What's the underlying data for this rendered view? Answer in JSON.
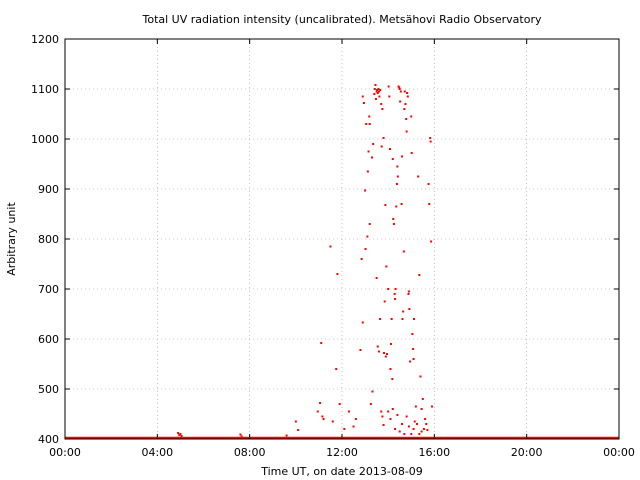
{
  "chart_data": {
    "type": "scatter",
    "title": "Total UV radiation intensity (uncalibrated). Metsähovi Radio Observatory",
    "xlabel": "Time UT, on date 2013-08-09",
    "ylabel": "Arbitrary unit",
    "xlim": [
      0,
      24
    ],
    "ylim": [
      400,
      1200
    ],
    "x_ticks": [
      {
        "value": 0,
        "label": "00:00"
      },
      {
        "value": 4,
        "label": "04:00"
      },
      {
        "value": 8,
        "label": "08:00"
      },
      {
        "value": 12,
        "label": "12:00"
      },
      {
        "value": 16,
        "label": "16:00"
      },
      {
        "value": 20,
        "label": "20:00"
      },
      {
        "value": 24,
        "label": "00:00"
      }
    ],
    "y_ticks": [
      400,
      500,
      600,
      700,
      800,
      900,
      1000,
      1100,
      1200
    ],
    "grid": true,
    "marker_color": "#ff0000",
    "series": [
      {
        "points": [
          [
            4.9,
            412
          ],
          [
            4.95,
            408
          ],
          [
            5.0,
            410
          ],
          [
            5.05,
            406
          ],
          [
            7.6,
            409
          ],
          [
            7.65,
            405
          ],
          [
            9.6,
            407
          ],
          [
            10.0,
            435
          ],
          [
            10.1,
            418
          ],
          [
            10.95,
            455
          ],
          [
            11.05,
            472
          ],
          [
            11.1,
            592
          ],
          [
            11.15,
            445
          ],
          [
            11.2,
            440
          ],
          [
            11.5,
            785
          ],
          [
            11.6,
            435
          ],
          [
            11.75,
            540
          ],
          [
            11.8,
            730
          ],
          [
            11.9,
            470
          ],
          [
            12.1,
            420
          ],
          [
            12.3,
            455
          ],
          [
            12.5,
            425
          ],
          [
            12.6,
            440
          ],
          [
            12.8,
            578
          ],
          [
            12.85,
            760
          ],
          [
            12.9,
            633
          ],
          [
            12.9,
            1085
          ],
          [
            12.95,
            1072
          ],
          [
            13.0,
            897
          ],
          [
            13.02,
            780
          ],
          [
            13.05,
            1030
          ],
          [
            13.1,
            805
          ],
          [
            13.12,
            935
          ],
          [
            13.15,
            975
          ],
          [
            13.18,
            1045
          ],
          [
            13.2,
            1030
          ],
          [
            13.2,
            830
          ],
          [
            13.25,
            470
          ],
          [
            13.3,
            963
          ],
          [
            13.32,
            495
          ],
          [
            13.35,
            990
          ],
          [
            13.4,
            1090
          ],
          [
            13.42,
            1100
          ],
          [
            13.45,
            1108
          ],
          [
            13.47,
            1080
          ],
          [
            13.5,
            1095
          ],
          [
            13.52,
            1098
          ],
          [
            13.55,
            1092
          ],
          [
            13.58,
            1100
          ],
          [
            13.6,
            1095
          ],
          [
            13.62,
            1085
          ],
          [
            13.65,
            1098
          ],
          [
            13.5,
            722
          ],
          [
            13.55,
            585
          ],
          [
            13.6,
            575
          ],
          [
            13.65,
            640
          ],
          [
            13.7,
            1070
          ],
          [
            13.72,
            985
          ],
          [
            13.75,
            1060
          ],
          [
            13.8,
            1002
          ],
          [
            13.82,
            572
          ],
          [
            13.85,
            675
          ],
          [
            13.88,
            868
          ],
          [
            13.9,
            565
          ],
          [
            13.92,
            745
          ],
          [
            13.95,
            570
          ],
          [
            13.7,
            455
          ],
          [
            13.75,
            445
          ],
          [
            13.8,
            428
          ],
          [
            14.0,
            700
          ],
          [
            14.02,
            1105
          ],
          [
            14.05,
            1085
          ],
          [
            14.08,
            980
          ],
          [
            14.1,
            540
          ],
          [
            14.12,
            590
          ],
          [
            14.15,
            640
          ],
          [
            14.18,
            520
          ],
          [
            14.2,
            960
          ],
          [
            14.22,
            840
          ],
          [
            14.25,
            830
          ],
          [
            14.28,
            690
          ],
          [
            14.3,
            680
          ],
          [
            14.32,
            700
          ],
          [
            14.35,
            865
          ],
          [
            14.38,
            910
          ],
          [
            14.4,
            945
          ],
          [
            14.42,
            925
          ],
          [
            14.45,
            1105
          ],
          [
            14.48,
            1103
          ],
          [
            14.5,
            1100
          ],
          [
            14.52,
            1075
          ],
          [
            14.55,
            1095
          ],
          [
            14.58,
            870
          ],
          [
            14.6,
            965
          ],
          [
            14.62,
            640
          ],
          [
            14.65,
            655
          ],
          [
            14.68,
            775
          ],
          [
            14.7,
            1060
          ],
          [
            14.72,
            1095
          ],
          [
            14.75,
            1070
          ],
          [
            14.78,
            1040
          ],
          [
            14.8,
            1015
          ],
          [
            14.82,
            1092
          ],
          [
            14.85,
            1085
          ],
          [
            14.88,
            690
          ],
          [
            14.9,
            695
          ],
          [
            14.92,
            660
          ],
          [
            14.95,
            555
          ],
          [
            15.0,
            1045
          ],
          [
            15.02,
            972
          ],
          [
            15.05,
            610
          ],
          [
            15.08,
            580
          ],
          [
            15.1,
            560
          ],
          [
            15.12,
            640
          ],
          [
            15.15,
            435
          ],
          [
            15.2,
            465
          ],
          [
            15.3,
            925
          ],
          [
            15.35,
            728
          ],
          [
            15.4,
            525
          ],
          [
            15.45,
            460
          ],
          [
            15.5,
            480
          ],
          [
            15.6,
            440
          ],
          [
            15.7,
            418
          ],
          [
            15.75,
            910
          ],
          [
            15.78,
            870
          ],
          [
            15.82,
            1002
          ],
          [
            15.84,
            995
          ],
          [
            15.86,
            795
          ],
          [
            15.9,
            465
          ],
          [
            14.0,
            455
          ],
          [
            14.1,
            440
          ],
          [
            14.2,
            460
          ],
          [
            14.3,
            420
          ],
          [
            14.4,
            448
          ],
          [
            14.5,
            415
          ],
          [
            14.6,
            430
          ],
          [
            14.7,
            410
          ],
          [
            14.8,
            445
          ],
          [
            14.9,
            425
          ],
          [
            15.0,
            410
          ],
          [
            15.1,
            420
          ],
          [
            15.25,
            430
          ],
          [
            15.35,
            410
          ],
          [
            15.45,
            415
          ],
          [
            15.55,
            420
          ],
          [
            15.65,
            430
          ]
        ]
      }
    ]
  }
}
